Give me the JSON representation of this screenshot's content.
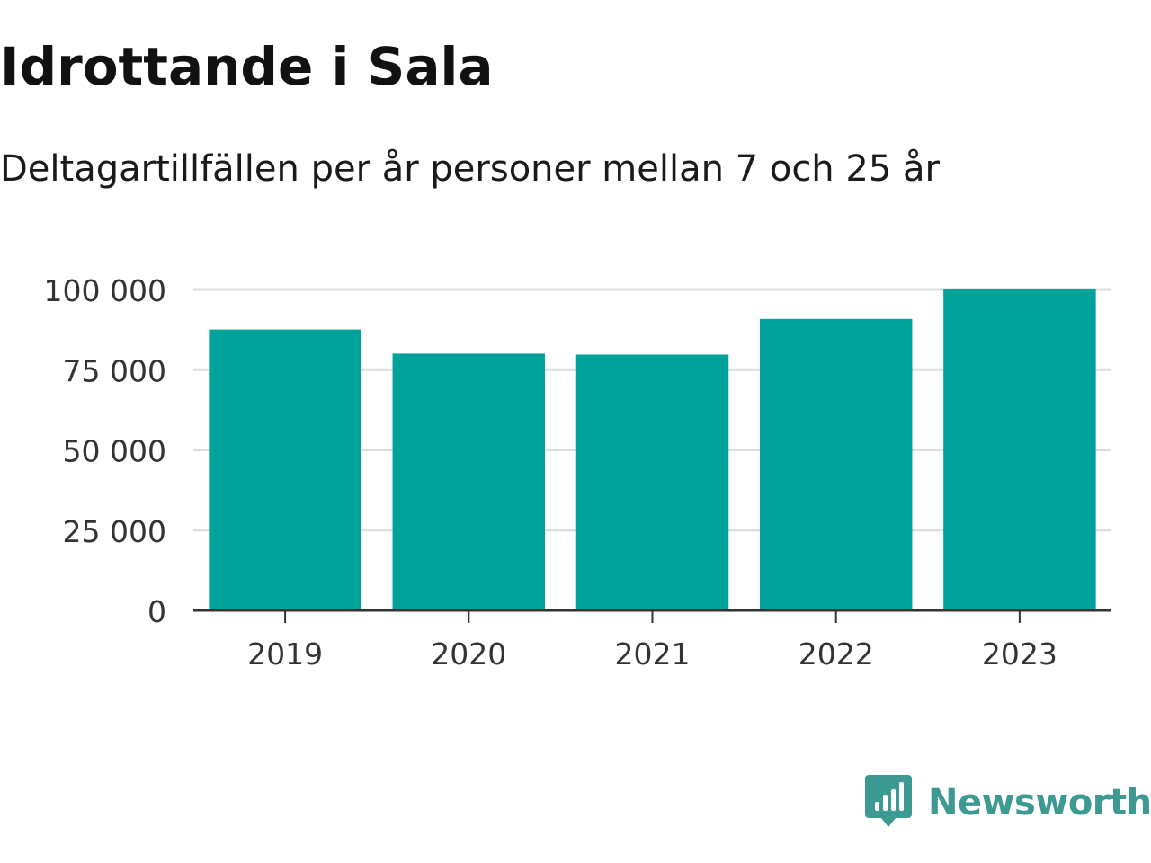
{
  "title": "Idrottande i Sala",
  "subtitle": "Deltagartillfällen per år personer mellan 7 och 25 år",
  "chart_data": {
    "type": "bar",
    "categories": [
      "2019",
      "2020",
      "2021",
      "2022",
      "2023"
    ],
    "values": [
      87500,
      80000,
      79700,
      90800,
      100300
    ],
    "ylim": [
      0,
      100000
    ],
    "yticks": [
      0,
      25000,
      50000,
      75000,
      100000
    ],
    "ytick_labels": [
      "0",
      "25 000",
      "50 000",
      "75 000",
      "100 000"
    ],
    "grid": true,
    "xlabel": "",
    "ylabel": "",
    "bar_color": "#00a39a",
    "grid_color": "#dddddd",
    "axis_color": "#333333"
  },
  "brand": {
    "name": "Newsworthy",
    "logo_icon": "chart-speech-bubble-icon",
    "color": "#3d9a93"
  }
}
